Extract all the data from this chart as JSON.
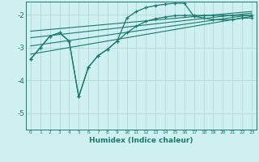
{
  "xlabel": "Humidex (Indice chaleur)",
  "background_color": "#cff0f0",
  "grid_color": "#b0d8d8",
  "line_color": "#1a7a6e",
  "spine_color": "#1a7a6e",
  "xlim": [
    -0.5,
    23.5
  ],
  "ylim": [
    -5.5,
    -1.6
  ],
  "yticks": [
    -5,
    -4,
    -3,
    -2
  ],
  "xticks": [
    0,
    1,
    2,
    3,
    4,
    5,
    6,
    7,
    8,
    9,
    10,
    11,
    12,
    13,
    14,
    15,
    16,
    17,
    18,
    19,
    20,
    21,
    22,
    23
  ],
  "curve1_x": [
    0,
    1,
    2,
    3,
    4,
    5,
    6,
    7,
    8,
    9,
    10,
    11,
    12,
    13,
    14,
    15,
    16,
    17,
    18,
    19,
    20,
    21,
    22,
    23
  ],
  "curve1_y": [
    -3.35,
    -3.0,
    -2.65,
    -2.55,
    -2.8,
    -4.5,
    -3.6,
    -3.25,
    -3.05,
    -2.8,
    -2.1,
    -1.9,
    -1.78,
    -1.72,
    -1.68,
    -1.65,
    -1.65,
    -2.05,
    -2.1,
    -2.15,
    -2.15,
    -2.15,
    -2.1,
    -2.1
  ],
  "curve2_x": [
    0,
    1,
    2,
    3,
    4,
    5,
    6,
    7,
    8,
    9,
    10,
    11,
    12,
    13,
    14,
    15,
    16,
    17,
    18,
    19,
    20,
    21,
    22,
    23
  ],
  "curve2_y": [
    -3.35,
    -3.0,
    -2.65,
    -2.55,
    -2.8,
    -4.5,
    -3.6,
    -3.25,
    -3.05,
    -2.8,
    -2.55,
    -2.35,
    -2.2,
    -2.12,
    -2.07,
    -2.03,
    -2.02,
    -2.02,
    -2.02,
    -2.02,
    -2.02,
    -2.02,
    -2.02,
    -2.02
  ],
  "line1_x": [
    0,
    23
  ],
  "line1_y": [
    -3.2,
    -2.05
  ],
  "line2_x": [
    0,
    23
  ],
  "line2_y": [
    -2.95,
    -2.0
  ],
  "line3_x": [
    0,
    23
  ],
  "line3_y": [
    -2.7,
    -1.95
  ],
  "line4_x": [
    0,
    23
  ],
  "line4_y": [
    -2.5,
    -1.9
  ]
}
